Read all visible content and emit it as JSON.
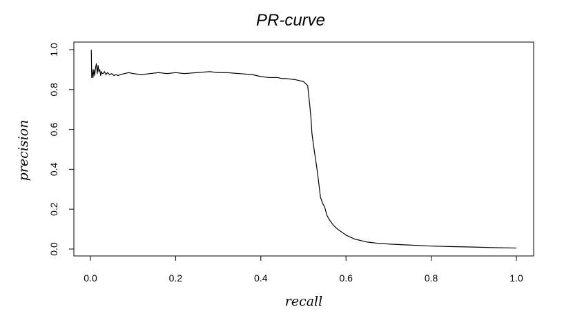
{
  "chart_data": {
    "type": "line",
    "title": "PR-curve",
    "xlabel": "recall",
    "ylabel": "precision",
    "xlim": [
      0,
      1
    ],
    "ylim": [
      0,
      1
    ],
    "x_ticks": [
      0.0,
      0.2,
      0.4,
      0.6,
      0.8,
      1.0
    ],
    "x_tick_labels": [
      "0.0",
      "0.2",
      "0.4",
      "0.6",
      "0.8",
      "1.0"
    ],
    "y_ticks": [
      0.0,
      0.2,
      0.4,
      0.6,
      0.8,
      1.0
    ],
    "y_tick_labels": [
      "0.0",
      "0.2",
      "0.4",
      "0.6",
      "0.8",
      "1.0"
    ],
    "grid": false,
    "legend": "none",
    "series": [
      {
        "color": "#000000",
        "x": [
          0.002,
          0.003,
          0.004,
          0.006,
          0.008,
          0.01,
          0.012,
          0.014,
          0.016,
          0.018,
          0.02,
          0.022,
          0.024,
          0.026,
          0.028,
          0.03,
          0.033,
          0.036,
          0.04,
          0.045,
          0.05,
          0.055,
          0.06,
          0.065,
          0.07,
          0.08,
          0.09,
          0.1,
          0.12,
          0.14,
          0.16,
          0.18,
          0.2,
          0.22,
          0.25,
          0.28,
          0.3,
          0.32,
          0.35,
          0.38,
          0.4,
          0.42,
          0.44,
          0.45,
          0.46,
          0.48,
          0.5,
          0.505,
          0.51,
          0.512,
          0.515,
          0.518,
          0.52,
          0.525,
          0.53,
          0.535,
          0.54,
          0.545,
          0.55,
          0.555,
          0.56,
          0.57,
          0.58,
          0.59,
          0.6,
          0.61,
          0.62,
          0.63,
          0.64,
          0.65,
          0.67,
          0.7,
          0.75,
          0.8,
          0.85,
          0.9,
          0.95,
          1.0
        ],
        "y": [
          1.0,
          0.86,
          0.9,
          0.86,
          0.9,
          0.87,
          0.91,
          0.93,
          0.88,
          0.92,
          0.89,
          0.9,
          0.87,
          0.89,
          0.88,
          0.88,
          0.89,
          0.875,
          0.885,
          0.875,
          0.88,
          0.87,
          0.875,
          0.87,
          0.875,
          0.88,
          0.885,
          0.88,
          0.875,
          0.88,
          0.885,
          0.88,
          0.885,
          0.88,
          0.885,
          0.89,
          0.885,
          0.885,
          0.88,
          0.875,
          0.865,
          0.86,
          0.86,
          0.855,
          0.855,
          0.85,
          0.84,
          0.83,
          0.82,
          0.78,
          0.72,
          0.65,
          0.58,
          0.5,
          0.43,
          0.35,
          0.26,
          0.23,
          0.21,
          0.17,
          0.15,
          0.12,
          0.1,
          0.085,
          0.07,
          0.06,
          0.05,
          0.045,
          0.04,
          0.035,
          0.03,
          0.025,
          0.02,
          0.015,
          0.012,
          0.01,
          0.007,
          0.005
        ]
      }
    ]
  }
}
